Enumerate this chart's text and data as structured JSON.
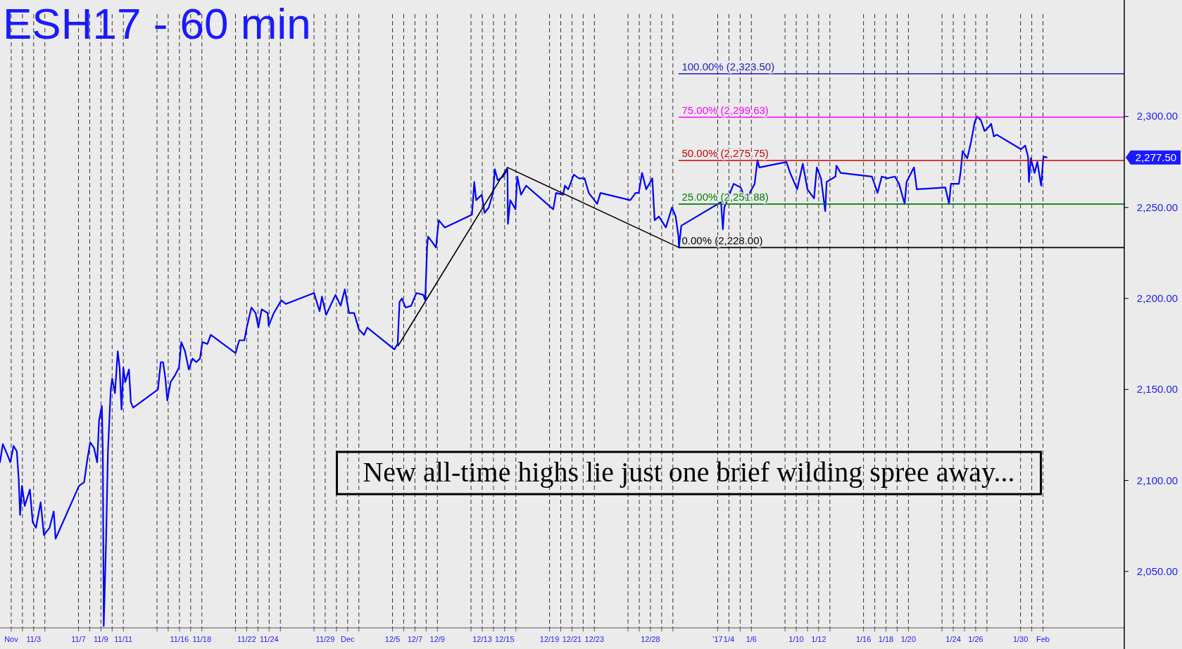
{
  "chart_data": {
    "type": "line",
    "title": "ESH17 - 60 min",
    "xlim": [
      "2016-10-31T00:00",
      "2017-02-08T06:00"
    ],
    "ylim": [
      2019,
      2364
    ],
    "xticks": [
      {
        "value": "2016-11-01",
        "label": "Nov"
      },
      {
        "value": "2016-11-02",
        "label": null
      },
      {
        "value": "2016-11-03",
        "label": "11/3"
      },
      {
        "value": "2016-11-04",
        "label": null
      },
      {
        "value": "2016-11-07",
        "label": "11/7"
      },
      {
        "value": "2016-11-08",
        "label": null
      },
      {
        "value": "2016-11-09",
        "label": "11/9"
      },
      {
        "value": "2016-11-10",
        "label": null
      },
      {
        "value": "2016-11-11",
        "label": "11/11"
      },
      {
        "value": "2016-11-14",
        "label": null
      },
      {
        "value": "2016-11-15",
        "label": null
      },
      {
        "value": "2016-11-16",
        "label": "11/16"
      },
      {
        "value": "2016-11-17",
        "label": null
      },
      {
        "value": "2016-11-18",
        "label": "11/18"
      },
      {
        "value": "2016-11-21",
        "label": null
      },
      {
        "value": "2016-11-22",
        "label": "11/22"
      },
      {
        "value": "2016-11-23",
        "label": null
      },
      {
        "value": "2016-11-24",
        "label": "11/24"
      },
      {
        "value": "2016-11-25",
        "label": null
      },
      {
        "value": "2016-11-28",
        "label": null
      },
      {
        "value": "2016-11-29",
        "label": "11/29"
      },
      {
        "value": "2016-11-30",
        "label": null
      },
      {
        "value": "2016-12-01",
        "label": "Dec"
      },
      {
        "value": "2016-12-02",
        "label": null
      },
      {
        "value": "2016-12-05",
        "label": "12/5"
      },
      {
        "value": "2016-12-06",
        "label": null
      },
      {
        "value": "2016-12-07",
        "label": "12/7"
      },
      {
        "value": "2016-12-08",
        "label": null
      },
      {
        "value": "2016-12-09",
        "label": "12/9"
      },
      {
        "value": "2016-12-12",
        "label": null
      },
      {
        "value": "2016-12-13",
        "label": "12/13"
      },
      {
        "value": "2016-12-14",
        "label": null
      },
      {
        "value": "2016-12-15",
        "label": "12/15"
      },
      {
        "value": "2016-12-16",
        "label": null
      },
      {
        "value": "2016-12-19",
        "label": "12/19"
      },
      {
        "value": "2016-12-20",
        "label": null
      },
      {
        "value": "2016-12-21",
        "label": "12/21"
      },
      {
        "value": "2016-12-22",
        "label": null
      },
      {
        "value": "2016-12-23",
        "label": "12/23"
      },
      {
        "value": "2016-12-26",
        "label": null
      },
      {
        "value": "2016-12-27",
        "label": null
      },
      {
        "value": "2016-12-28",
        "label": "12/28"
      },
      {
        "value": "2016-12-29",
        "label": null
      },
      {
        "value": "2016-12-30",
        "label": null
      },
      {
        "value": "2017-01-03",
        "label": "'17"
      },
      {
        "value": "2017-01-04",
        "label": "1/4"
      },
      {
        "value": "2017-01-05",
        "label": null
      },
      {
        "value": "2017-01-06",
        "label": "1/6"
      },
      {
        "value": "2017-01-09",
        "label": null
      },
      {
        "value": "2017-01-10",
        "label": "1/10"
      },
      {
        "value": "2017-01-11",
        "label": null
      },
      {
        "value": "2017-01-12",
        "label": "1/12"
      },
      {
        "value": "2017-01-13",
        "label": null
      },
      {
        "value": "2017-01-16",
        "label": "1/16"
      },
      {
        "value": "2017-01-17",
        "label": null
      },
      {
        "value": "2017-01-18",
        "label": "1/18"
      },
      {
        "value": "2017-01-19",
        "label": null
      },
      {
        "value": "2017-01-20",
        "label": "1/20"
      },
      {
        "value": "2017-01-23",
        "label": null
      },
      {
        "value": "2017-01-24",
        "label": "1/24"
      },
      {
        "value": "2017-01-25",
        "label": null
      },
      {
        "value": "2017-01-26",
        "label": "1/26"
      },
      {
        "value": "2017-01-27",
        "label": null
      },
      {
        "value": "2017-01-30",
        "label": "1/30"
      },
      {
        "value": "2017-01-31",
        "label": null
      },
      {
        "value": "2017-02-01",
        "label": "Feb"
      }
    ],
    "yticks": [
      {
        "value": 2050,
        "label": "2,050.00"
      },
      {
        "value": 2100,
        "label": "2,100.00"
      },
      {
        "value": 2150,
        "label": "2,150.00"
      },
      {
        "value": 2200,
        "label": "2,200.00"
      },
      {
        "value": 2250,
        "label": "2,250.00"
      },
      {
        "value": 2300,
        "label": "2,300.00"
      }
    ],
    "grid": "x",
    "line_style": "solid",
    "marker": "none",
    "series": [
      {
        "color": "#0000ff",
        "x": [
          "2016-10-31T00:00",
          "2016-10-31T06:00",
          "2016-10-31T16:00",
          "2016-10-31T22:00",
          "2016-11-01T05:00",
          "2016-11-01T12:00",
          "2016-11-01T16:00",
          "2016-11-01T19:00",
          "2016-11-01T23:00",
          "2016-11-02T05:00",
          "2016-11-02T16:00",
          "2016-11-02T22:00",
          "2016-11-03T05:00",
          "2016-11-03T15:00",
          "2016-11-03T22:00",
          "2016-11-04T10:00",
          "2016-11-04T19:00",
          "2016-11-04T23:00",
          "2016-11-07T01:00",
          "2016-11-07T12:00",
          "2016-11-07T18:00",
          "2016-11-08T01:00",
          "2016-11-08T09:00",
          "2016-11-08T16:00",
          "2016-11-08T20:00",
          "2016-11-09T02:00",
          "2016-11-09T04:00",
          "2016-11-09T06:00",
          "2016-11-09T11:00",
          "2016-11-09T15:00",
          "2016-11-09T21:00",
          "2016-11-10T00:00",
          "2016-11-10T06:00",
          "2016-11-10T12:00",
          "2016-11-10T16:00",
          "2016-11-10T20:00",
          "2016-11-11T00:00",
          "2016-11-11T04:00",
          "2016-11-11T12:00",
          "2016-11-11T16:00",
          "2016-11-11T21:00",
          "2016-11-14T02:00",
          "2016-11-14T08:00",
          "2016-11-14T13:00",
          "2016-11-14T18:00",
          "2016-11-14T22:00",
          "2016-11-15T05:00",
          "2016-11-15T15:00",
          "2016-11-15T23:00",
          "2016-11-16T04:00",
          "2016-11-16T12:00",
          "2016-11-16T20:00",
          "2016-11-17T04:00",
          "2016-11-17T12:00",
          "2016-11-17T20:00",
          "2016-11-18T01:00",
          "2016-11-18T12:00",
          "2016-11-18T19:00",
          "2016-11-21T00:00",
          "2016-11-21T08:00",
          "2016-11-21T19:00",
          "2016-11-22T00:00",
          "2016-11-22T10:00",
          "2016-11-22T19:00",
          "2016-11-23T01:00",
          "2016-11-23T08:00",
          "2016-11-23T21:00",
          "2016-11-23T23:00",
          "2016-11-24T10:00",
          "2016-11-25T02:00",
          "2016-11-25T12:00",
          "2016-11-28T00:00",
          "2016-11-28T12:00",
          "2016-11-28T17:00",
          "2016-11-29T02:00",
          "2016-11-29T22:00",
          "2016-11-30T09:00",
          "2016-11-30T18:00",
          "2016-12-01T03:00",
          "2016-12-01T14:00",
          "2016-12-02T00:00",
          "2016-12-02T11:00",
          "2016-12-02T18:00",
          "2016-12-05T04:00",
          "2016-12-05T11:00",
          "2016-12-05T15:00",
          "2016-12-05T20:00",
          "2016-12-06T04:00",
          "2016-12-06T16:00",
          "2016-12-07T03:00",
          "2016-12-07T18:00",
          "2016-12-07T22:00",
          "2016-12-08T02:00",
          "2016-12-08T04:00",
          "2016-12-08T13:00",
          "2016-12-08T21:00",
          "2016-12-09T03:00",
          "2016-12-09T16:00",
          "2016-12-12T02:00",
          "2016-12-12T07:00",
          "2016-12-12T11:00",
          "2016-12-12T23:00",
          "2016-12-13T05:00",
          "2016-12-13T14:00",
          "2016-12-13T23:00",
          "2016-12-14T03:00",
          "2016-12-14T09:00",
          "2016-12-14T21:00",
          "2016-12-15T06:00",
          "2016-12-15T07:00",
          "2016-12-15T12:00",
          "2016-12-15T23:00",
          "2016-12-16T03:00",
          "2016-12-16T11:00",
          "2016-12-16T22:00",
          "2016-12-19T08:00",
          "2016-12-19T14:00",
          "2016-12-20T05:00",
          "2016-12-20T09:00",
          "2016-12-20T16:00",
          "2016-12-21T04:00",
          "2016-12-21T15:00",
          "2016-12-22T03:00",
          "2016-12-22T12:00",
          "2016-12-23T06:00",
          "2016-12-23T13:00",
          "2016-12-26T05:00",
          "2016-12-26T16:00",
          "2016-12-26T23:00",
          "2016-12-27T06:00",
          "2016-12-27T15:00",
          "2016-12-28T04:00",
          "2016-12-28T09:00",
          "2016-12-28T18:00",
          "2016-12-29T09:00",
          "2016-12-29T22:00",
          "2016-12-30T06:00",
          "2016-12-30T12:00",
          "2016-12-30T13:00",
          "2016-12-30T18:00",
          "2017-01-03T07:00",
          "2017-01-03T11:00",
          "2017-01-03T14:00",
          "2017-01-04T10:00",
          "2017-01-05T01:00",
          "2017-01-05T12:00",
          "2017-01-06T07:00",
          "2017-01-06T13:00",
          "2017-01-06T17:00",
          "2017-01-09T03:00",
          "2017-01-09T11:00",
          "2017-01-10T02:00",
          "2017-01-10T14:00",
          "2017-01-11T00:00",
          "2017-01-11T14:00",
          "2017-01-11T20:00",
          "2017-01-12T05:00",
          "2017-01-12T14:00",
          "2017-01-12T17:00",
          "2017-01-13T12:00",
          "2017-01-13T14:00",
          "2017-01-13T23:00",
          "2017-01-16T18:00",
          "2017-01-17T06:00",
          "2017-01-17T15:00",
          "2017-01-18T03:00",
          "2017-01-18T19:00",
          "2017-01-19T04:00",
          "2017-01-19T16:00",
          "2017-01-19T20:00",
          "2017-01-20T12:00",
          "2017-01-20T18:00",
          "2017-01-23T07:00",
          "2017-01-23T15:00",
          "2017-01-23T19:00",
          "2017-01-24T12:00",
          "2017-01-24T16:00",
          "2017-01-24T20:00",
          "2017-01-25T06:00",
          "2017-01-25T14:00",
          "2017-01-25T22:00",
          "2017-01-26T03:00",
          "2017-01-26T11:00",
          "2017-01-26T19:00",
          "2017-01-27T03:00",
          "2017-01-27T09:00",
          "2017-01-27T15:00",
          "2017-01-27T21:00",
          "2017-01-30T01:00",
          "2017-01-30T10:00",
          "2017-01-30T16:00",
          "2017-01-30T18:00",
          "2017-01-30T22:00",
          "2017-01-31T06:00",
          "2017-01-31T12:00",
          "2017-01-31T20:00",
          "2017-02-01T01:00",
          "2017-02-01T08:00"
        ],
        "values": [
          2110,
          2120,
          2114,
          2110,
          2119,
          2116,
          2101,
          2081,
          2097,
          2086,
          2095,
          2077,
          2074,
          2088,
          2070,
          2074,
          2083,
          2068,
          2097,
          2099,
          2110,
          2121,
          2118,
          2110,
          2133,
          2141,
          2116,
          2020,
          2067,
          2116,
          2150,
          2156,
          2148,
          2171,
          2162,
          2139,
          2162,
          2154,
          2161,
          2143,
          2140,
          2150,
          2165,
          2165,
          2156,
          2144,
          2154,
          2158,
          2162,
          2176,
          2171,
          2161,
          2167,
          2165,
          2167,
          2176,
          2175,
          2180,
          2170,
          2177,
          2177,
          2184,
          2195,
          2192,
          2184,
          2194,
          2192,
          2185,
          2192,
          2199,
          2197,
          2203,
          2193,
          2201,
          2191,
          2202,
          2196,
          2205,
          2192,
          2192,
          2183,
          2180,
          2184,
          2172,
          2175,
          2198,
          2200,
          2195,
          2196,
          2203,
          2202,
          2199,
          2228,
          2234,
          2231,
          2228,
          2243,
          2239,
          2246,
          2264,
          2254,
          2257,
          2247,
          2250,
          2258,
          2271,
          2265,
          2267,
          2271,
          2241,
          2254,
          2249,
          2267,
          2257,
          2262,
          2249,
          2258,
          2257,
          2262,
          2260,
          2268,
          2266,
          2266,
          2258,
          2252,
          2258,
          2254,
          2258,
          2258,
          2269,
          2260,
          2266,
          2243,
          2245,
          2239,
          2250,
          2245,
          2234,
          2228,
          2240,
          2253,
          2238,
          2250,
          2263,
          2261,
          2254,
          2263,
          2276,
          2272,
          2275,
          2269,
          2260,
          2274,
          2260,
          2255,
          2272,
          2266,
          2248,
          2264,
          2267,
          2273,
          2269,
          2267,
          2258,
          2267,
          2266,
          2267,
          2263,
          2252,
          2264,
          2272,
          2260,
          2261,
          2252,
          2263,
          2263,
          2270,
          2281,
          2277,
          2286,
          2297,
          2300,
          2298,
          2292,
          2294,
          2296,
          2289,
          2290,
          2282,
          2284,
          2278,
          2264,
          2277,
          2269,
          2275,
          2262,
          2278,
          2277.5
        ]
      },
      {
        "name": "100.00% (2,323.50)",
        "color": "#1a1acc",
        "x": [
          "2016-12-30T13:00",
          "2017-02-08T06:00"
        ],
        "values": [
          2323.5,
          2323.5
        ]
      },
      {
        "name": "75.00% (2,299.63)",
        "color": "#ff00ff",
        "x": [
          "2016-12-30T13:00",
          "2017-02-08T06:00"
        ],
        "values": [
          2299.6,
          2299.6
        ]
      },
      {
        "name": "50.00% (2,275.75)",
        "color": "#cc0000",
        "x": [
          "2016-12-30T13:00",
          "2017-02-08T06:00"
        ],
        "values": [
          2275.8,
          2275.8
        ]
      },
      {
        "name": "25.00% (2,251.88)",
        "color": "#008000",
        "x": [
          "2016-12-30T13:00",
          "2017-02-08T06:00"
        ],
        "values": [
          2251.9,
          2251.9
        ]
      },
      {
        "name": "0.00% (2,228.00)",
        "color": "#000000",
        "x": [
          "2016-12-05T12:00",
          "2016-12-15T06:00",
          "2016-12-30T13:00",
          "2017-02-08T06:00"
        ],
        "values": [
          2174,
          2272,
          2228,
          2228
        ]
      }
    ],
    "annotations": [
      "New all-time highs lie just one brief wilding spree away...",
      "2,277.50"
    ]
  }
}
